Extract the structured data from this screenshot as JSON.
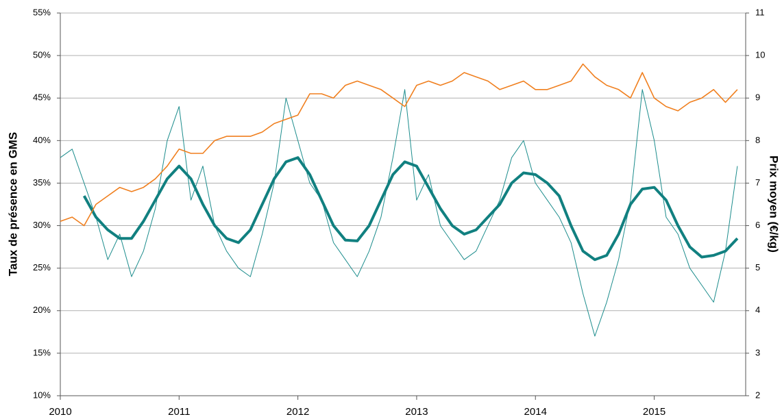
{
  "chart_data": {
    "type": "line",
    "ylabel": "Taux de présence en GMS",
    "y2label": "Prix moyen (€/kg)",
    "x": [
      2010.0,
      2010.1,
      2010.2,
      2010.3,
      2010.4,
      2010.5,
      2010.6,
      2010.7,
      2010.8,
      2010.9,
      2011.0,
      2011.1,
      2011.2,
      2011.3,
      2011.4,
      2011.5,
      2011.6,
      2011.7,
      2011.8,
      2011.9,
      2012.0,
      2012.1,
      2012.2,
      2012.3,
      2012.4,
      2012.5,
      2012.6,
      2012.7,
      2012.8,
      2012.9,
      2013.0,
      2013.1,
      2013.2,
      2013.3,
      2013.4,
      2013.5,
      2013.6,
      2013.7,
      2013.8,
      2013.9,
      2014.0,
      2014.1,
      2014.2,
      2014.3,
      2014.4,
      2014.5,
      2014.6,
      2014.7,
      2014.8,
      2014.9,
      2015.0,
      2015.1,
      2015.2,
      2015.3,
      2015.4,
      2015.5,
      2015.6,
      2015.7
    ],
    "xlim": [
      2010,
      2015.77
    ],
    "xticks": [
      2010,
      2011,
      2012,
      2013,
      2014,
      2015
    ],
    "ylim": [
      10,
      55
    ],
    "yticks": [
      {
        "value": 10,
        "label": "10%"
      },
      {
        "value": 15,
        "label": "15%"
      },
      {
        "value": 20,
        "label": "20%"
      },
      {
        "value": 25,
        "label": "25%"
      },
      {
        "value": 30,
        "label": "30%"
      },
      {
        "value": 35,
        "label": "35%"
      },
      {
        "value": 40,
        "label": "40%"
      },
      {
        "value": 45,
        "label": "45%"
      },
      {
        "value": 50,
        "label": "50%"
      },
      {
        "value": 55,
        "label": "55%"
      }
    ],
    "y2lim": [
      2,
      11
    ],
    "y2ticks": [
      2,
      3,
      4,
      5,
      6,
      7,
      8,
      9,
      10,
      11
    ],
    "grid": true,
    "series": [
      {
        "color": "#1b8c8c",
        "width": 1,
        "values": [
          38,
          39,
          35,
          31,
          26,
          29,
          24,
          27,
          32,
          40,
          44,
          33,
          37,
          30,
          27,
          25,
          24,
          29,
          35,
          45,
          40,
          35,
          33,
          28,
          26,
          24,
          27,
          31,
          38,
          46,
          33,
          36,
          30,
          28,
          26,
          27,
          30,
          33,
          38,
          40,
          35,
          33,
          31,
          28,
          22,
          17,
          21,
          26,
          33,
          46,
          40,
          31,
          29,
          25,
          23,
          21,
          27,
          37
        ]
      },
      {
        "color": "#118080",
        "width": 4,
        "values": [
          null,
          null,
          33.5,
          31,
          29.5,
          28.5,
          28.5,
          30.5,
          33,
          35.5,
          37,
          35.5,
          32.5,
          30,
          28.5,
          28,
          29.5,
          32.5,
          35.5,
          37.5,
          38,
          36,
          33,
          30,
          28.3,
          28.2,
          30,
          33,
          36,
          37.5,
          37,
          34.5,
          32,
          30,
          29,
          29.5,
          31,
          32.5,
          35,
          36.2,
          36,
          35,
          33.5,
          30,
          27,
          26,
          26.5,
          29,
          32.5,
          34.3,
          34.5,
          33,
          30,
          27.5,
          26.3,
          26.5,
          27,
          28.5
        ]
      },
      {
        "color": "#f07f1e",
        "width": 1.6,
        "axis": "y2",
        "values": [
          6.1,
          6.2,
          6.0,
          6.5,
          6.7,
          6.9,
          6.8,
          6.9,
          7.1,
          7.4,
          7.8,
          7.7,
          7.7,
          8.0,
          8.1,
          8.1,
          8.1,
          8.2,
          8.4,
          8.5,
          8.6,
          9.1,
          9.1,
          9.0,
          9.3,
          9.4,
          9.3,
          9.2,
          9.0,
          8.8,
          9.3,
          9.4,
          9.3,
          9.4,
          9.6,
          9.5,
          9.4,
          9.2,
          9.3,
          9.4,
          9.2,
          9.2,
          9.3,
          9.4,
          9.8,
          9.5,
          9.3,
          9.2,
          9.0,
          9.6,
          9.0,
          8.8,
          8.7,
          8.9,
          9.0,
          9.2,
          8.9,
          9.2
        ]
      }
    ]
  }
}
